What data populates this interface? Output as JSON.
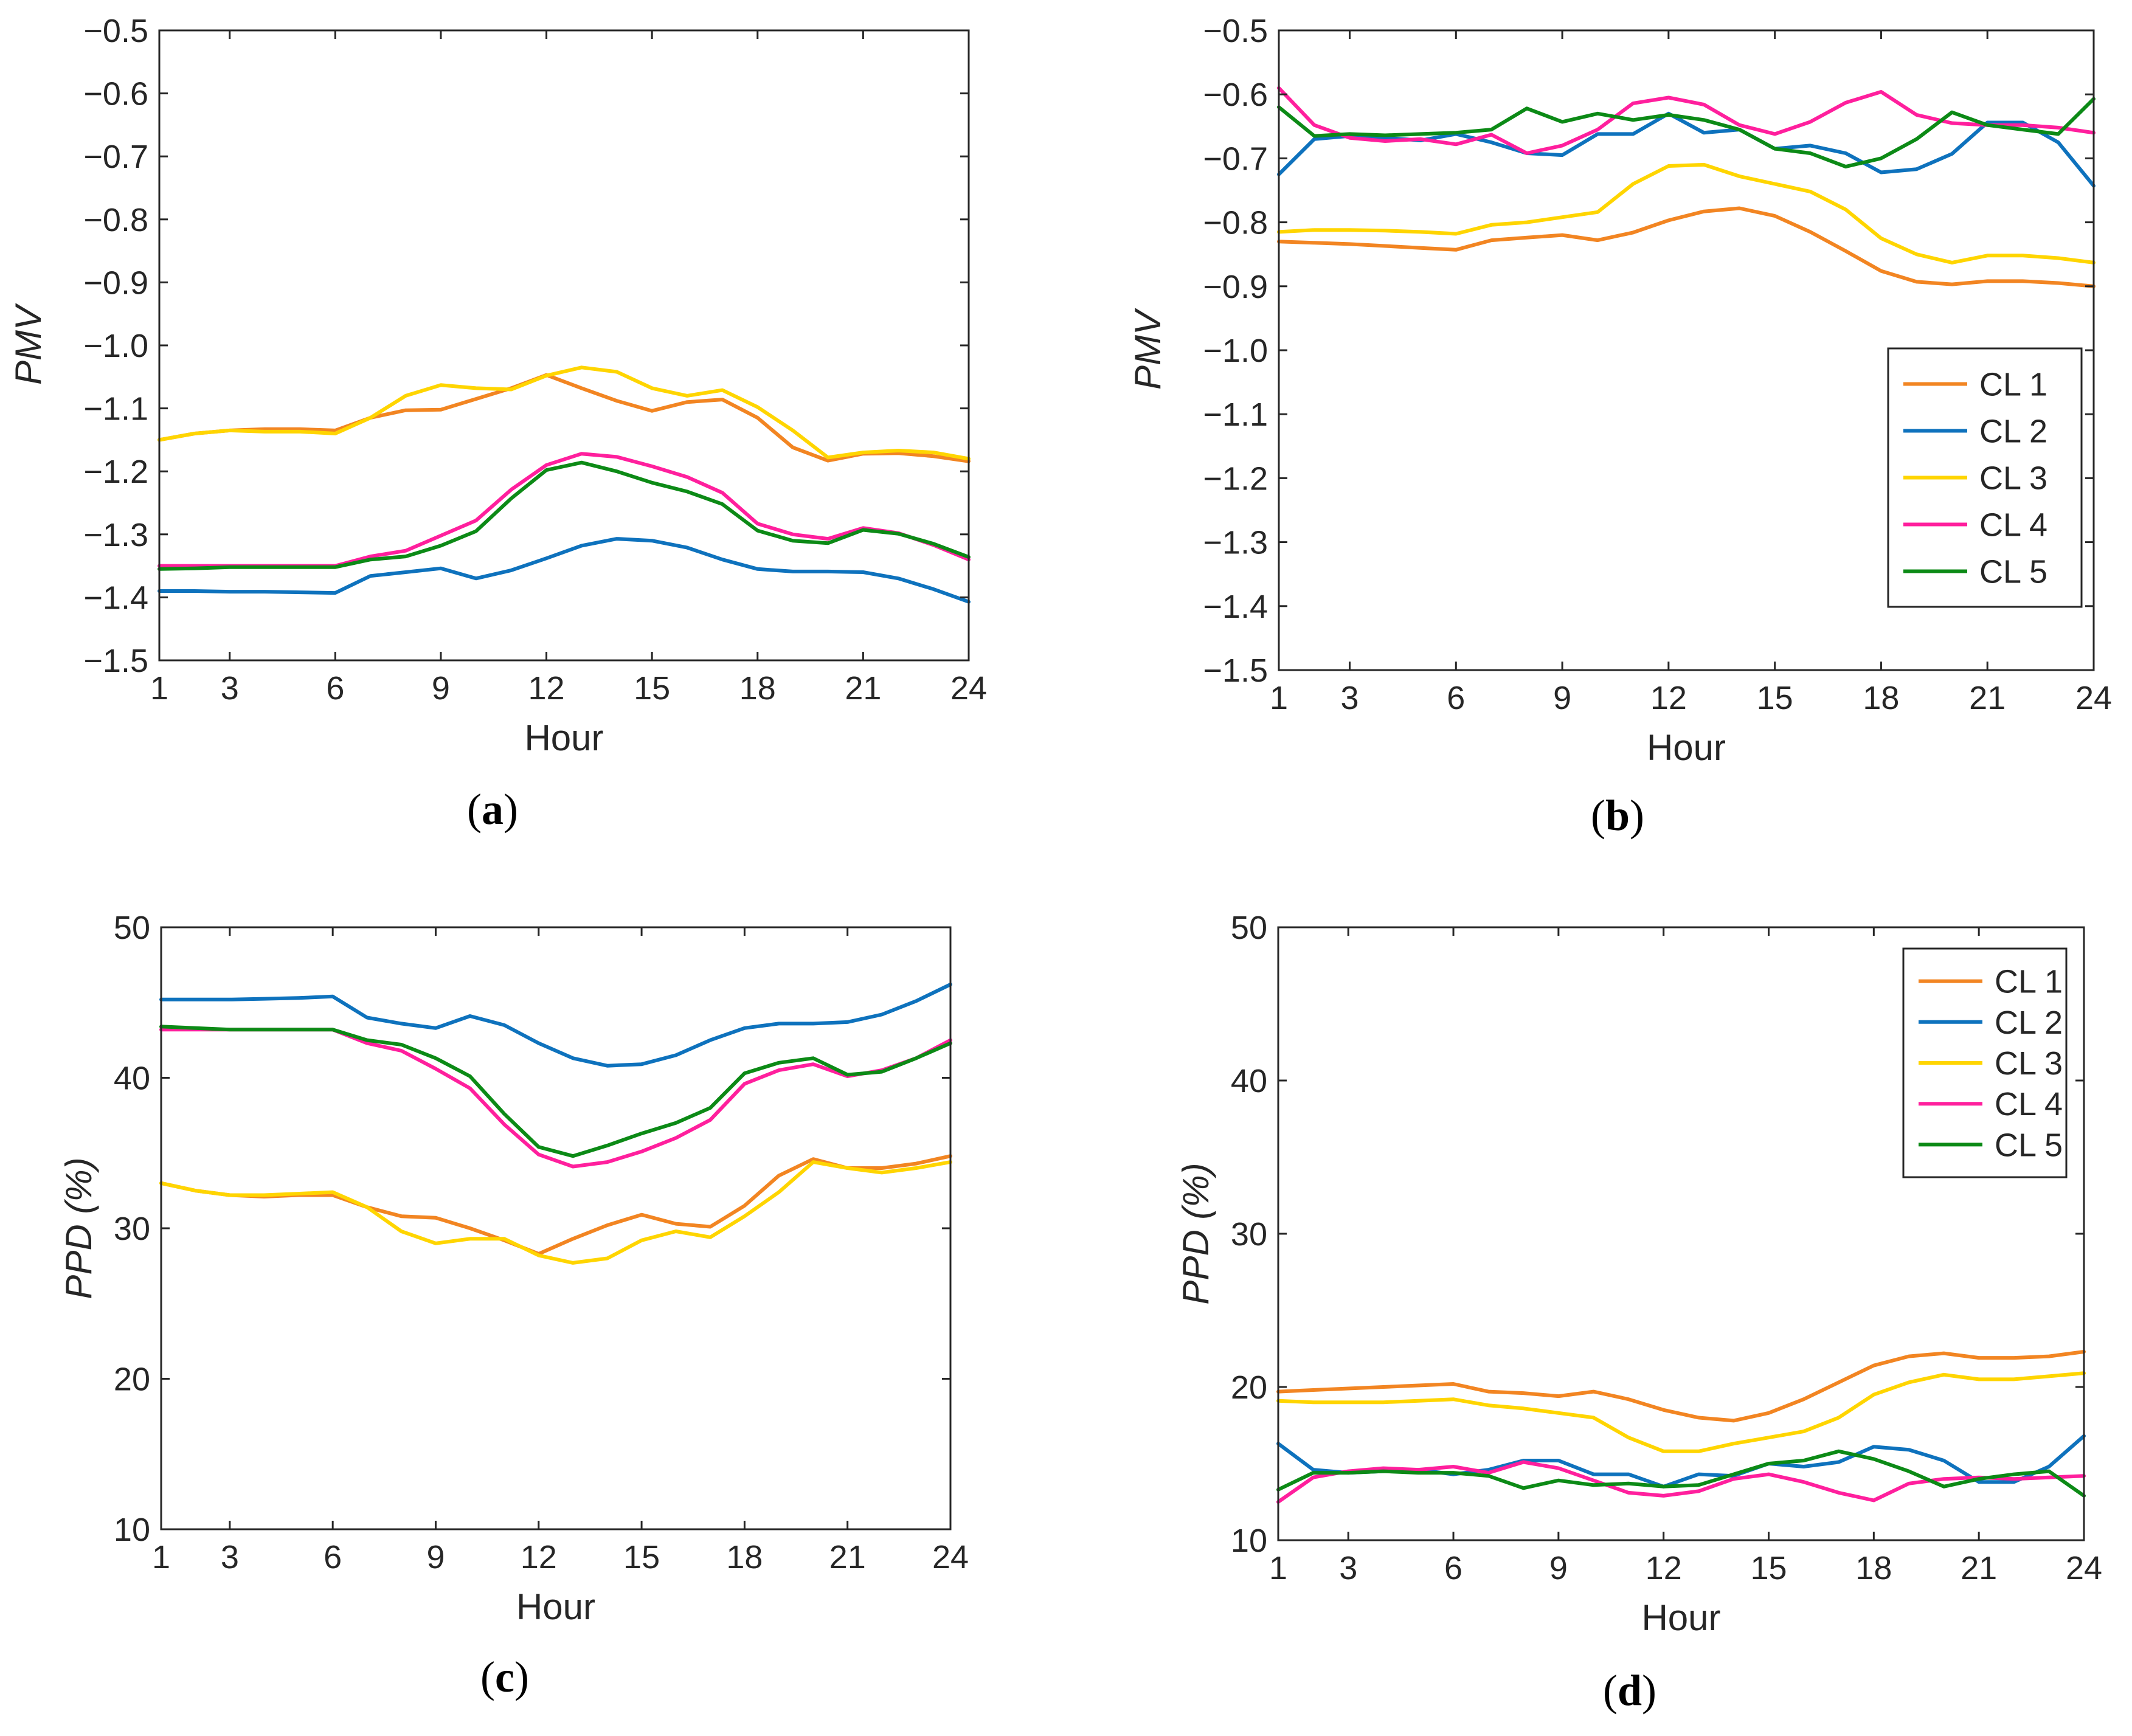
{
  "colors": {
    "CL 1": "#F28522",
    "CL 2": "#0E72BD",
    "CL 3": "#FFD500",
    "CL 4": "#FF1F9D",
    "CL 5": "#0C8A16"
  },
  "chart_data": [
    {
      "id": "a",
      "type": "line",
      "panel_label": "(a)",
      "panel_letter": "a",
      "xlabel": "Hour",
      "ylabel": "PMV",
      "xlim": [
        1,
        24
      ],
      "ylim": [
        -1.5,
        -0.5
      ],
      "xticks": [
        1,
        3,
        6,
        9,
        12,
        15,
        18,
        21,
        24
      ],
      "yticks": [
        -1.5,
        -1.4,
        -1.3,
        -1.2,
        -1.1,
        -1.0,
        -0.9,
        -0.8,
        -0.7,
        -0.6,
        -0.5
      ],
      "ytick_labels": [
        "−1.5",
        "−1.4",
        "−1.3",
        "−1.2",
        "−1.1",
        "−1.0",
        "−0.9",
        "−0.8",
        "−0.7",
        "−0.6",
        "−0.5"
      ],
      "legend": null,
      "x": [
        1,
        2,
        3,
        4,
        5,
        6,
        7,
        8,
        9,
        10,
        11,
        12,
        13,
        14,
        15,
        16,
        17,
        18,
        19,
        20,
        21,
        22,
        23,
        24
      ],
      "series": [
        {
          "name": "CL 1",
          "values": [
            -1.15,
            -1.14,
            -1.135,
            -1.133,
            -1.133,
            -1.135,
            -1.115,
            -1.103,
            -1.102,
            -1.085,
            -1.068,
            -1.047,
            -1.068,
            -1.088,
            -1.104,
            -1.09,
            -1.086,
            -1.115,
            -1.162,
            -1.183,
            -1.172,
            -1.171,
            -1.176,
            -1.184
          ]
        },
        {
          "name": "CL 2",
          "values": [
            -1.39,
            -1.39,
            -1.391,
            -1.391,
            -1.392,
            -1.393,
            -1.366,
            -1.36,
            -1.354,
            -1.37,
            -1.357,
            -1.338,
            -1.318,
            -1.307,
            -1.31,
            -1.321,
            -1.34,
            -1.355,
            -1.359,
            -1.359,
            -1.36,
            -1.37,
            -1.387,
            -1.407
          ]
        },
        {
          "name": "CL 3",
          "values": [
            -1.15,
            -1.14,
            -1.135,
            -1.137,
            -1.137,
            -1.14,
            -1.115,
            -1.08,
            -1.063,
            -1.068,
            -1.07,
            -1.048,
            -1.035,
            -1.042,
            -1.068,
            -1.08,
            -1.071,
            -1.098,
            -1.135,
            -1.178,
            -1.17,
            -1.167,
            -1.17,
            -1.18
          ]
        },
        {
          "name": "CL 4",
          "values": [
            -1.35,
            -1.35,
            -1.35,
            -1.35,
            -1.35,
            -1.35,
            -1.335,
            -1.326,
            -1.302,
            -1.278,
            -1.229,
            -1.19,
            -1.172,
            -1.177,
            -1.192,
            -1.209,
            -1.234,
            -1.283,
            -1.3,
            -1.307,
            -1.29,
            -1.298,
            -1.317,
            -1.34
          ]
        },
        {
          "name": "CL 5",
          "values": [
            -1.355,
            -1.354,
            -1.352,
            -1.352,
            -1.352,
            -1.352,
            -1.34,
            -1.335,
            -1.318,
            -1.295,
            -1.243,
            -1.198,
            -1.186,
            -1.2,
            -1.218,
            -1.232,
            -1.252,
            -1.294,
            -1.31,
            -1.314,
            -1.293,
            -1.299,
            -1.315,
            -1.336
          ]
        }
      ]
    },
    {
      "id": "b",
      "type": "line",
      "panel_label": "(b)",
      "panel_letter": "b",
      "xlabel": "Hour",
      "ylabel": "PMV",
      "xlim": [
        1,
        24
      ],
      "ylim": [
        -1.5,
        -0.5
      ],
      "xticks": [
        1,
        3,
        6,
        9,
        12,
        15,
        18,
        21,
        24
      ],
      "yticks": [
        -1.5,
        -1.4,
        -1.3,
        -1.2,
        -1.1,
        -1.0,
        -0.9,
        -0.8,
        -0.7,
        -0.6,
        -0.5
      ],
      "ytick_labels": [
        "−1.5",
        "−1.4",
        "−1.3",
        "−1.2",
        "−1.1",
        "−1.0",
        "−0.9",
        "−0.8",
        "−0.7",
        "−0.6",
        "−0.5"
      ],
      "legend": "right-middle",
      "x": [
        1,
        2,
        3,
        4,
        5,
        6,
        7,
        8,
        9,
        10,
        11,
        12,
        13,
        14,
        15,
        16,
        17,
        18,
        19,
        20,
        21,
        22,
        23,
        24
      ],
      "series": [
        {
          "name": "CL 1",
          "values": [
            -0.83,
            -0.832,
            -0.834,
            -0.837,
            -0.84,
            -0.843,
            -0.828,
            -0.824,
            -0.82,
            -0.828,
            -0.816,
            -0.797,
            -0.783,
            -0.778,
            -0.79,
            -0.815,
            -0.845,
            -0.876,
            -0.893,
            -0.897,
            -0.892,
            -0.892,
            -0.895,
            -0.9
          ]
        },
        {
          "name": "CL 2",
          "values": [
            -0.725,
            -0.67,
            -0.665,
            -0.668,
            -0.672,
            -0.662,
            -0.675,
            -0.692,
            -0.695,
            -0.662,
            -0.662,
            -0.63,
            -0.66,
            -0.655,
            -0.685,
            -0.68,
            -0.692,
            -0.722,
            -0.717,
            -0.693,
            -0.644,
            -0.644,
            -0.675,
            -0.743
          ]
        },
        {
          "name": "CL 3",
          "values": [
            -0.815,
            -0.812,
            -0.812,
            -0.813,
            -0.815,
            -0.818,
            -0.804,
            -0.8,
            -0.792,
            -0.784,
            -0.74,
            -0.712,
            -0.71,
            -0.728,
            -0.74,
            -0.752,
            -0.78,
            -0.825,
            -0.85,
            -0.863,
            -0.852,
            -0.852,
            -0.856,
            -0.863
          ]
        },
        {
          "name": "CL 4",
          "values": [
            -0.59,
            -0.648,
            -0.668,
            -0.673,
            -0.67,
            -0.678,
            -0.663,
            -0.692,
            -0.68,
            -0.655,
            -0.614,
            -0.605,
            -0.616,
            -0.648,
            -0.662,
            -0.643,
            -0.613,
            -0.596,
            -0.632,
            -0.645,
            -0.648,
            -0.648,
            -0.652,
            -0.66
          ]
        },
        {
          "name": "CL 5",
          "values": [
            -0.62,
            -0.665,
            -0.662,
            -0.664,
            -0.662,
            -0.66,
            -0.655,
            -0.622,
            -0.643,
            -0.63,
            -0.64,
            -0.632,
            -0.64,
            -0.655,
            -0.685,
            -0.692,
            -0.713,
            -0.7,
            -0.67,
            -0.628,
            -0.648,
            -0.655,
            -0.662,
            -0.607
          ]
        }
      ]
    },
    {
      "id": "c",
      "type": "line",
      "panel_label": "(c)",
      "panel_letter": "c",
      "xlabel": "Hour",
      "ylabel": "PPD (%)",
      "xlim": [
        1,
        24
      ],
      "ylim": [
        10,
        50
      ],
      "xticks": [
        1,
        3,
        6,
        9,
        12,
        15,
        18,
        21,
        24
      ],
      "yticks": [
        10,
        20,
        30,
        40,
        50
      ],
      "ytick_labels": [
        "10",
        "20",
        "30",
        "40",
        "50"
      ],
      "legend": null,
      "x": [
        1,
        2,
        3,
        4,
        5,
        6,
        7,
        8,
        9,
        10,
        11,
        12,
        13,
        14,
        15,
        16,
        17,
        18,
        19,
        20,
        21,
        22,
        23,
        24
      ],
      "series": [
        {
          "name": "CL 1",
          "values": [
            33.0,
            32.5,
            32.2,
            32.1,
            32.2,
            32.2,
            31.4,
            30.8,
            30.7,
            30.0,
            29.2,
            28.3,
            29.3,
            30.2,
            30.9,
            30.3,
            30.1,
            31.5,
            33.5,
            34.6,
            34.0,
            34.0,
            34.3,
            34.8
          ]
        },
        {
          "name": "CL 2",
          "values": [
            45.2,
            45.2,
            45.2,
            45.25,
            45.3,
            45.4,
            44.0,
            43.6,
            43.3,
            44.1,
            43.5,
            42.3,
            41.3,
            40.8,
            40.9,
            41.5,
            42.5,
            43.3,
            43.6,
            43.6,
            43.7,
            44.2,
            45.1,
            46.2
          ]
        },
        {
          "name": "CL 3",
          "values": [
            33.0,
            32.5,
            32.2,
            32.2,
            32.3,
            32.4,
            31.4,
            29.8,
            29.0,
            29.3,
            29.3,
            28.2,
            27.7,
            28.0,
            29.2,
            29.8,
            29.4,
            30.8,
            32.4,
            34.4,
            34.0,
            33.7,
            34.0,
            34.4
          ]
        },
        {
          "name": "CL 4",
          "values": [
            43.2,
            43.2,
            43.2,
            43.2,
            43.2,
            43.2,
            42.3,
            41.8,
            40.6,
            39.3,
            36.9,
            34.9,
            34.1,
            34.4,
            35.1,
            36.0,
            37.2,
            39.6,
            40.5,
            40.9,
            40.1,
            40.5,
            41.3,
            42.5
          ]
        },
        {
          "name": "CL 5",
          "values": [
            43.4,
            43.3,
            43.2,
            43.2,
            43.2,
            43.2,
            42.5,
            42.2,
            41.3,
            40.1,
            37.6,
            35.4,
            34.8,
            35.5,
            36.3,
            37.0,
            38.0,
            40.3,
            41.0,
            41.3,
            40.2,
            40.4,
            41.3,
            42.3
          ]
        }
      ]
    },
    {
      "id": "d",
      "type": "line",
      "panel_label": "(d)",
      "panel_letter": "d",
      "xlabel": "Hour",
      "ylabel": "PPD (%)",
      "xlim": [
        1,
        24
      ],
      "ylim": [
        10,
        50
      ],
      "xticks": [
        1,
        3,
        6,
        9,
        12,
        15,
        18,
        21,
        24
      ],
      "yticks": [
        10,
        20,
        30,
        40,
        50
      ],
      "ytick_labels": [
        "10",
        "20",
        "30",
        "40",
        "50"
      ],
      "legend": "top-right",
      "x": [
        1,
        2,
        3,
        4,
        5,
        6,
        7,
        8,
        9,
        10,
        11,
        12,
        13,
        14,
        15,
        16,
        17,
        18,
        19,
        20,
        21,
        22,
        23,
        24
      ],
      "series": [
        {
          "name": "CL 1",
          "values": [
            19.7,
            19.8,
            19.9,
            20.0,
            20.1,
            20.2,
            19.7,
            19.6,
            19.4,
            19.7,
            19.2,
            18.5,
            18.0,
            17.8,
            18.3,
            19.2,
            20.3,
            21.4,
            22.0,
            22.2,
            21.9,
            21.9,
            22.0,
            22.3
          ]
        },
        {
          "name": "CL 2",
          "values": [
            16.3,
            14.6,
            14.4,
            14.5,
            14.6,
            14.3,
            14.6,
            15.2,
            15.2,
            14.3,
            14.3,
            13.5,
            14.3,
            14.2,
            15.0,
            14.8,
            15.1,
            16.1,
            15.9,
            15.2,
            13.8,
            13.8,
            14.8,
            16.8
          ]
        },
        {
          "name": "CL 3",
          "values": [
            19.1,
            19.0,
            19.0,
            19.0,
            19.1,
            19.2,
            18.8,
            18.6,
            18.3,
            18.0,
            16.7,
            15.8,
            15.8,
            16.3,
            16.7,
            17.1,
            18.0,
            19.5,
            20.3,
            20.8,
            20.5,
            20.5,
            20.7,
            20.9
          ]
        },
        {
          "name": "CL 4",
          "values": [
            12.5,
            14.1,
            14.5,
            14.7,
            14.6,
            14.8,
            14.4,
            15.1,
            14.7,
            13.9,
            13.1,
            12.9,
            13.2,
            14.0,
            14.3,
            13.8,
            13.1,
            12.6,
            13.7,
            14.0,
            14.1,
            14.0,
            14.1,
            14.2
          ]
        },
        {
          "name": "CL 5",
          "values": [
            13.3,
            14.4,
            14.4,
            14.5,
            14.4,
            14.4,
            14.2,
            13.4,
            13.9,
            13.6,
            13.7,
            13.5,
            13.6,
            14.3,
            15.0,
            15.2,
            15.8,
            15.3,
            14.5,
            13.5,
            14.0,
            14.3,
            14.5,
            12.9
          ]
        }
      ]
    }
  ]
}
